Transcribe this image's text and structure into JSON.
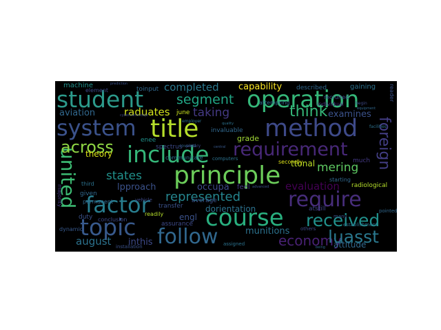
{
  "wordcloud": {
    "words": [
      {
        "text": "operation",
        "color": "#35b779"
      },
      {
        "text": "student",
        "color": "#2c9a8b"
      },
      {
        "text": "system",
        "color": "#3b528b"
      },
      {
        "text": "title",
        "color": "#b5de2b"
      },
      {
        "text": "method",
        "color": "#3e4a89"
      },
      {
        "text": "include",
        "color": "#35b779"
      },
      {
        "text": "principle",
        "color": "#6ccd5a"
      },
      {
        "text": "requirement",
        "color": "#482878"
      },
      {
        "text": "factor",
        "color": "#287d8e"
      },
      {
        "text": "topic",
        "color": "#38598c"
      },
      {
        "text": "course",
        "color": "#29af7f"
      },
      {
        "text": "require",
        "color": "#472d7b"
      },
      {
        "text": "follow",
        "color": "#31688e"
      },
      {
        "text": "received",
        "color": "#21918c"
      },
      {
        "text": "united",
        "color": "#3dbc74"
      },
      {
        "text": "foreign",
        "color": "#433e85"
      },
      {
        "text": "economy",
        "color": "#482173"
      },
      {
        "text": "luasst",
        "color": "#2a788e"
      },
      {
        "text": "across",
        "color": "#8fd744"
      },
      {
        "text": "segment",
        "color": "#21a585"
      },
      {
        "text": "completed",
        "color": "#2a788e"
      },
      {
        "text": "think",
        "color": "#35b779"
      },
      {
        "text": "taking",
        "color": "#443983"
      },
      {
        "text": "capability",
        "color": "#fde725"
      },
      {
        "text": "mering",
        "color": "#5ec962"
      },
      {
        "text": "represented",
        "color": "#25858e"
      },
      {
        "text": "states",
        "color": "#21918c"
      },
      {
        "text": "raduates",
        "color": "#d2e21b"
      },
      {
        "text": "theory",
        "color": "#dde318"
      },
      {
        "text": "lpproach",
        "color": "#3b528b"
      },
      {
        "text": "occupa",
        "color": "#3e4989"
      },
      {
        "text": "dorientation",
        "color": "#2c728e"
      },
      {
        "text": "evaluation",
        "color": "#440154"
      },
      {
        "text": "munitions",
        "color": "#2c728e"
      },
      {
        "text": "august",
        "color": "#2c728e"
      },
      {
        "text": "inthis",
        "color": "#3e4a89"
      },
      {
        "text": "attitude",
        "color": "#31688e"
      },
      {
        "text": "examines",
        "color": "#3b528b"
      },
      {
        "text": "aviation",
        "color": "#31688e"
      },
      {
        "text": "machine",
        "color": "#21918c"
      },
      {
        "text": "grade",
        "color": "#a2da37"
      },
      {
        "text": "ttonal",
        "color": "#bddf26"
      },
      {
        "text": "engl",
        "color": "#3b528b"
      },
      {
        "text": "radiological",
        "color": "#b5de2b"
      },
      {
        "text": "gaining",
        "color": "#2c728e"
      },
      {
        "text": "spectrus",
        "color": "#3e4a89"
      },
      {
        "text": "invaluable",
        "color": "#31688e"
      },
      {
        "text": "toinput",
        "color": "#31688e"
      },
      {
        "text": "element",
        "color": "#3e4a89"
      },
      {
        "text": "described",
        "color": "#31688e"
      },
      {
        "text": "june",
        "color": "#cae11f"
      },
      {
        "text": "enee",
        "color": "#21918c"
      },
      {
        "text": "atstill",
        "color": "#404688"
      },
      {
        "text": "much",
        "color": "#443983"
      },
      {
        "text": "starting",
        "color": "#31688e"
      },
      {
        "text": "individual",
        "color": "#472c7a"
      },
      {
        "text": "recruited",
        "color": "#3e4a89"
      },
      {
        "text": "attempting",
        "color": "#31688e"
      },
      {
        "text": "secondly",
        "color": "#dde318"
      },
      {
        "text": "communicate",
        "color": "#2c728e"
      },
      {
        "text": "computers",
        "color": "#2c728e"
      },
      {
        "text": "feel",
        "color": "#443983"
      },
      {
        "text": "average",
        "color": "#3b528b"
      },
      {
        "text": "assurance",
        "color": "#3e4a89"
      },
      {
        "text": "transfer",
        "color": "#3b528b"
      },
      {
        "text": "readily",
        "color": "#b5de2b"
      },
      {
        "text": "conclusion",
        "color": "#3e4a89"
      },
      {
        "text": "duty",
        "color": "#3b528b"
      },
      {
        "text": "given",
        "color": "#31688e"
      },
      {
        "text": "third",
        "color": "#2c728e"
      },
      {
        "text": "permanent",
        "color": "#31688e"
      },
      {
        "text": "dynamic",
        "color": "#38598c"
      },
      {
        "text": "installation",
        "color": "#3b528b"
      },
      {
        "text": "assigned",
        "color": "#2c728e"
      },
      {
        "text": "others",
        "color": "#3e4a89"
      },
      {
        "text": "establishment",
        "color": "#2c728e"
      },
      {
        "text": "pointed",
        "color": "#31688e"
      },
      {
        "text": "vehicle",
        "color": "#3e4a89"
      },
      {
        "text": "covered",
        "color": "#31688e"
      },
      {
        "text": "employer",
        "color": "#2c728e"
      },
      {
        "text": "many",
        "color": "#3b528b"
      },
      {
        "text": "majority",
        "color": "#443983"
      },
      {
        "text": "reader",
        "color": "#3b528b"
      },
      {
        "text": "facilities",
        "color": "#2c728e"
      },
      {
        "text": "begin",
        "color": "#3e4a89"
      },
      {
        "text": "equipment",
        "color": "#31688e"
      },
      {
        "text": "prediction",
        "color": "#3b528b"
      },
      {
        "text": "cybernationdept",
        "color": "#3e4a89"
      },
      {
        "text": "advanced",
        "color": "#3b528b"
      },
      {
        "text": "being",
        "color": "#31688e"
      },
      {
        "text": "pietary",
        "color": "#3e4a89"
      },
      {
        "text": "central",
        "color": "#38598c"
      },
      {
        "text": "quality",
        "color": "#2c728e"
      }
    ]
  }
}
